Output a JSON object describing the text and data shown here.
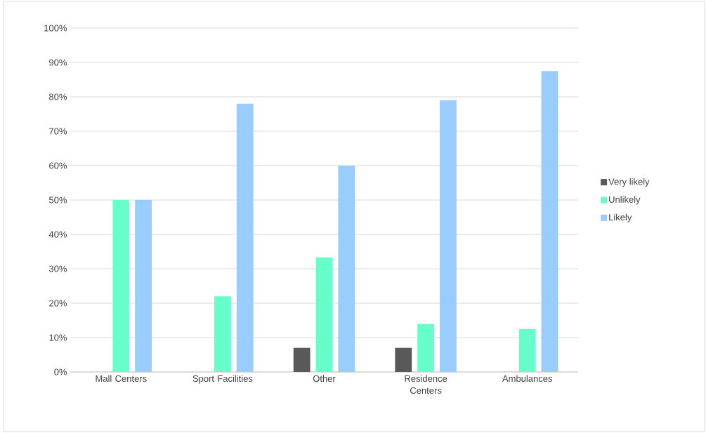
{
  "chart_data": {
    "type": "bar",
    "categories": [
      "Mall Centers",
      "Sport Facilities",
      "Other",
      "Residence Centers",
      "Ambulances"
    ],
    "series": [
      {
        "name": "Very likely",
        "color": "#595959",
        "values": [
          0,
          0,
          7,
          7,
          0
        ]
      },
      {
        "name": "Unlikely",
        "color": "#66ffcc",
        "values": [
          50,
          22,
          33.3,
          14,
          12.5
        ]
      },
      {
        "name": "Likely",
        "color": "#99ccff",
        "values": [
          50,
          78,
          60,
          79,
          87.5
        ]
      }
    ],
    "ylim": [
      0,
      100
    ],
    "yticks": [
      {
        "value": 0,
        "label": "0%"
      },
      {
        "value": 10,
        "label": "10%"
      },
      {
        "value": 20,
        "label": "20%"
      },
      {
        "value": 30,
        "label": "30%"
      },
      {
        "value": 40,
        "label": "40%"
      },
      {
        "value": 50,
        "label": "50%"
      },
      {
        "value": 60,
        "label": "60%"
      },
      {
        "value": 70,
        "label": "70%"
      },
      {
        "value": 80,
        "label": "80%"
      },
      {
        "value": 90,
        "label": "90%"
      },
      {
        "value": 100,
        "label": "100%"
      }
    ],
    "grid": "y",
    "legend": "right"
  }
}
